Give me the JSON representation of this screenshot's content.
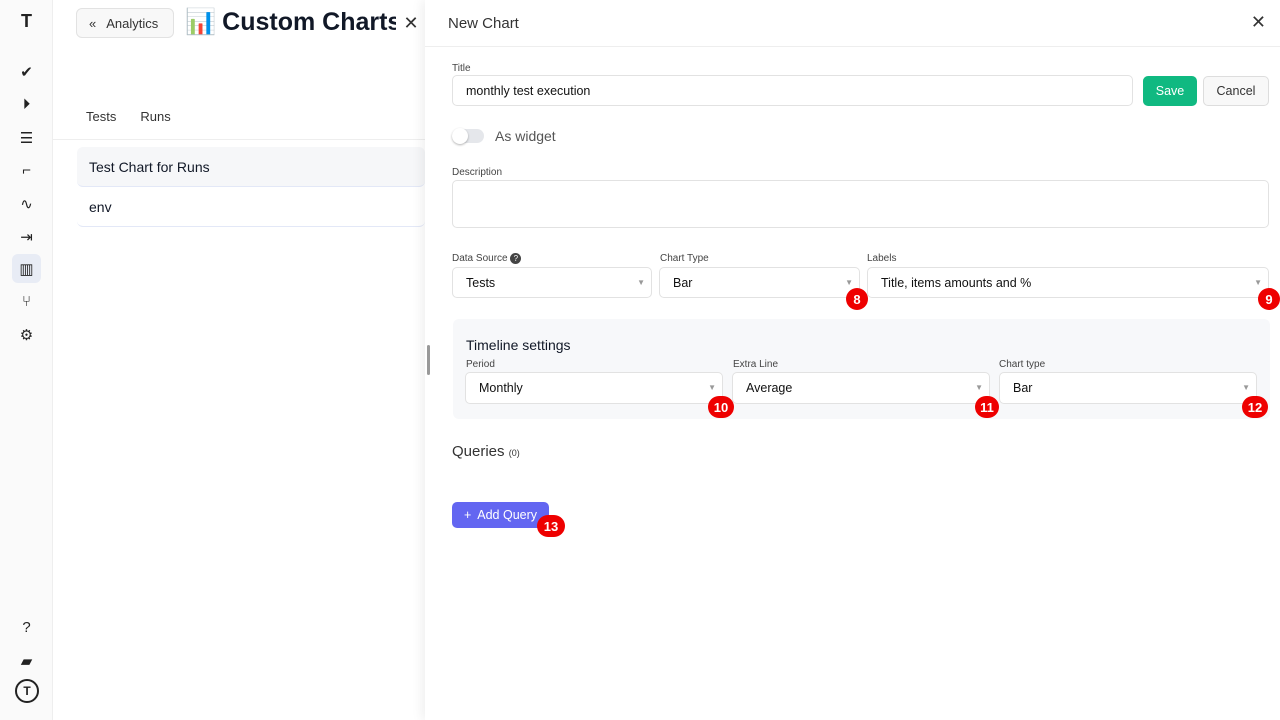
{
  "sidebar": {
    "items": [
      "check-icon",
      "play-circle-icon",
      "list-check-icon",
      "steps-icon",
      "pulse-icon",
      "import-icon",
      "chart-icon",
      "branch-icon",
      "gear-icon"
    ],
    "bottom": [
      "help-icon",
      "folder-icon",
      "logo-icon"
    ],
    "active": "chart-icon"
  },
  "header": {
    "back_label": "Analytics",
    "title": "Custom Charts",
    "title_icon": "📊"
  },
  "tabs": [
    "Tests",
    "Runs"
  ],
  "charts": [
    "Test Chart for Runs",
    "env"
  ],
  "panel": {
    "title": "New Chart",
    "title_label": "Title",
    "title_value": "monthly test execution",
    "save": "Save",
    "cancel": "Cancel",
    "widget_label": "As widget",
    "widget_on": false,
    "description_label": "Description",
    "description_value": "",
    "data_source_label": "Data Source",
    "data_source": "Tests",
    "chart_type_label": "Chart Type",
    "chart_type": "Bar",
    "labels_label": "Labels",
    "labels": "Title, items amounts and %",
    "timeline": {
      "title": "Timeline settings",
      "period_label": "Period",
      "period": "Monthly",
      "extra_label": "Extra Line",
      "extra": "Average",
      "type_label": "Chart type",
      "type": "Bar"
    },
    "queries_label": "Queries",
    "queries_count": "(0)",
    "add_query": "Add Query"
  },
  "badges": [
    "8",
    "9",
    "10",
    "11",
    "12",
    "13"
  ],
  "colors": {
    "save": "#10b981",
    "add_query": "#6366f1",
    "badge": "#e00000"
  }
}
